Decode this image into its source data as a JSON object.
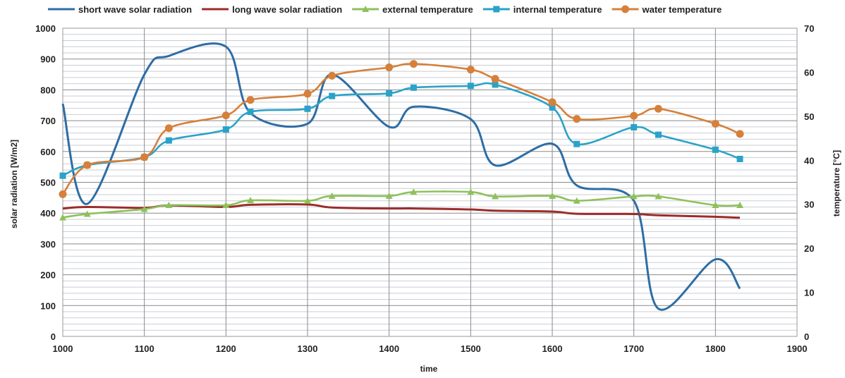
{
  "chart_data": {
    "type": "line",
    "title": "",
    "xlabel": "time",
    "ylabel_left": "solar radiation [W/m2]",
    "ylabel_right": "temperature [°C]",
    "xlim": [
      1000,
      1900
    ],
    "ylim_left": [
      0,
      1000
    ],
    "ylim_right": [
      0,
      70
    ],
    "x_ticks": [
      "1000",
      "1100",
      "1200",
      "1300",
      "1400",
      "1500",
      "1600",
      "1700",
      "1800",
      "1900"
    ],
    "y_left_ticks": [
      "0",
      "100",
      "200",
      "300",
      "400",
      "500",
      "600",
      "700",
      "800",
      "900",
      "1000"
    ],
    "y_right_ticks": [
      "0",
      "10",
      "20",
      "30",
      "40",
      "50",
      "60",
      "70"
    ],
    "grid": true,
    "legend_position": "top",
    "series": [
      {
        "name": "short wave solar radiation",
        "axis": "left",
        "color": "#2e6da4",
        "marker": "none",
        "x": [
          1000,
          1030,
          1100,
          1130,
          1200,
          1230,
          1300,
          1330,
          1400,
          1430,
          1500,
          1530,
          1600,
          1630,
          1700,
          1730,
          1800,
          1830
        ],
        "y": [
          755,
          430,
          850,
          910,
          940,
          725,
          690,
          850,
          680,
          745,
          705,
          555,
          625,
          490,
          440,
          90,
          250,
          155
        ]
      },
      {
        "name": "long wave solar radiation",
        "axis": "left",
        "color": "#9b2d2a",
        "marker": "none",
        "x": [
          1000,
          1030,
          1100,
          1130,
          1200,
          1230,
          1300,
          1330,
          1400,
          1430,
          1500,
          1530,
          1600,
          1630,
          1700,
          1730,
          1800,
          1830
        ],
        "y": [
          415,
          420,
          417,
          425,
          420,
          427,
          428,
          418,
          415,
          415,
          412,
          408,
          405,
          398,
          397,
          393,
          388,
          385
        ]
      },
      {
        "name": "external temperature",
        "axis": "right",
        "color": "#8dc15b",
        "marker": "triangle",
        "x": [
          1000,
          1030,
          1100,
          1130,
          1200,
          1230,
          1300,
          1330,
          1400,
          1430,
          1500,
          1530,
          1600,
          1630,
          1700,
          1730,
          1800,
          1830
        ],
        "y": [
          27.0,
          27.8,
          28.9,
          29.8,
          29.8,
          30.9,
          30.8,
          31.9,
          31.9,
          32.8,
          32.8,
          31.8,
          31.9,
          30.8,
          31.8,
          31.8,
          29.8,
          29.8
        ]
      },
      {
        "name": "internal temperature",
        "axis": "right",
        "color": "#2ba2c8",
        "marker": "square",
        "x": [
          1000,
          1030,
          1100,
          1130,
          1200,
          1230,
          1300,
          1330,
          1400,
          1430,
          1500,
          1530,
          1600,
          1630,
          1700,
          1730,
          1800,
          1830
        ],
        "y": [
          36.5,
          38.9,
          40.7,
          44.5,
          47.0,
          51.0,
          51.7,
          54.6,
          55.2,
          56.5,
          56.9,
          57.2,
          52.0,
          43.7,
          47.5,
          45.8,
          42.4,
          40.3
        ]
      },
      {
        "name": "water temperature",
        "axis": "right",
        "color": "#d6803a",
        "marker": "circle",
        "x": [
          1000,
          1030,
          1100,
          1130,
          1200,
          1230,
          1300,
          1330,
          1400,
          1430,
          1500,
          1530,
          1600,
          1630,
          1700,
          1730,
          1800,
          1830
        ],
        "y": [
          32.3,
          38.9,
          40.7,
          47.3,
          50.2,
          53.7,
          55.1,
          59.2,
          61.1,
          61.9,
          60.6,
          58.5,
          53.2,
          49.4,
          50.1,
          51.7,
          48.3,
          46.0
        ]
      }
    ]
  }
}
